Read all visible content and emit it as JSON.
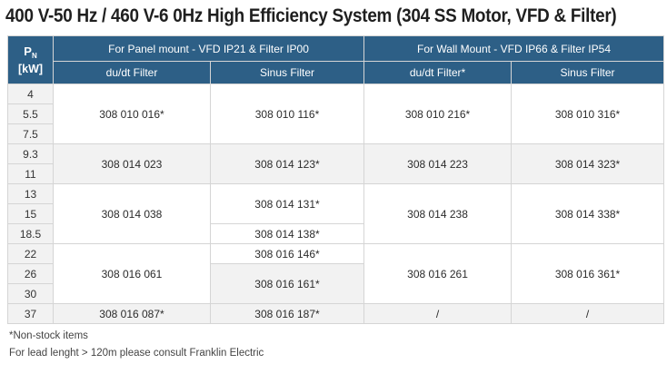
{
  "title": "400 V-50 Hz / 460 V-6 0Hz High Efficiency System (304 SS Motor, VFD & Filter)",
  "header": {
    "pn_symbol": "P",
    "pn_subscript": "N",
    "pn_unit": "[kW]",
    "group_panel": "For Panel mount - VFD IP21 & Filter IP00",
    "group_wall": "For Wall Mount - VFD IP66 & Filter IP54",
    "col_panel_dudt": "du/dt Filter",
    "col_panel_sinus": "Sinus Filter",
    "col_wall_dudt": "du/dt Filter*",
    "col_wall_sinus": "Sinus Filter"
  },
  "kw": [
    "4",
    "5.5",
    "7.5",
    "9.3",
    "11",
    "13",
    "15",
    "18.5",
    "22",
    "26",
    "30",
    "37"
  ],
  "codes": {
    "g1_panel_dudt": "308 010 016*",
    "g1_panel_sinus": "308 010 116*",
    "g1_wall_dudt": "308 010 216*",
    "g1_wall_sinus": "308 010 316*",
    "g2_panel_dudt": "308 014 023",
    "g2_panel_sinus": "308 014 123*",
    "g2_wall_dudt": "308 014 223",
    "g2_wall_sinus": "308 014 323*",
    "g3_panel_dudt": "308 014 038",
    "g3_panel_sinus_a": "308 014 131*",
    "g3_panel_sinus_b": "308 014 138*",
    "g3_wall_dudt": "308 014 238",
    "g3_wall_sinus": "308 014 338*",
    "g4_panel_dudt": "308 016 061",
    "g4_panel_sinus_a": "308 016 146*",
    "g4_panel_sinus_b": "308 016 161*",
    "g4_wall_dudt": "308 016 261",
    "g4_wall_sinus": "308 016 361*",
    "g5_panel_dudt": "308 016 087*",
    "g5_panel_sinus": "308 016 187*",
    "g5_wall_dudt": "/",
    "g5_wall_sinus": "/"
  },
  "footnotes": {
    "non_stock": "*Non-stock items",
    "lead_length": "For lead lenght > 120m please consult Franklin Electric"
  }
}
